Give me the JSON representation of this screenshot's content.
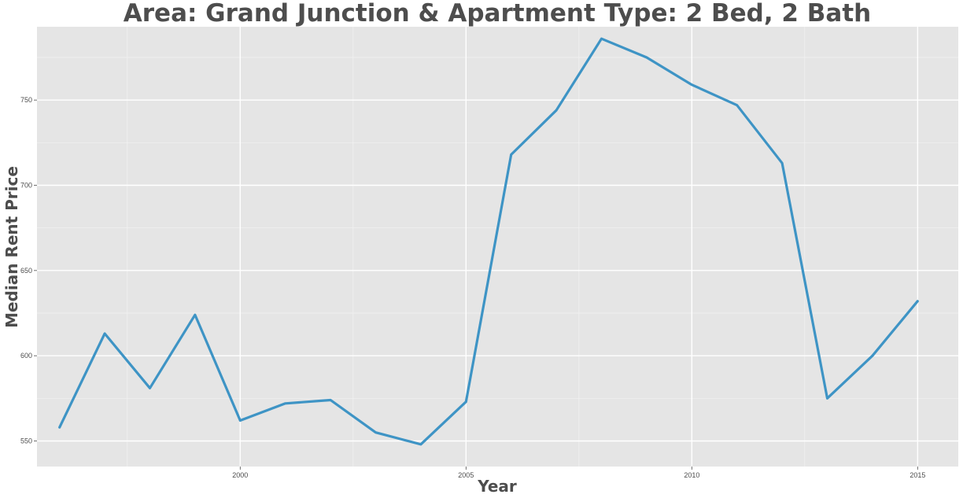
{
  "chart_data": {
    "type": "line",
    "title": "Area: Grand Junction & Apartment Type: 2 Bed, 2 Bath",
    "xlabel": "Year",
    "ylabel": "Median Rent Price",
    "xlim": [
      1995.5,
      2015.9
    ],
    "ylim": [
      535,
      793
    ],
    "x_ticks": [
      2000,
      2005,
      2010,
      2015
    ],
    "y_ticks": [
      550,
      600,
      650,
      700,
      750
    ],
    "x_tick_labels": [
      "2000",
      "2005",
      "2010",
      "2015"
    ],
    "y_tick_labels": [
      "550",
      "600",
      "650",
      "700",
      "750"
    ],
    "grid": true,
    "legend": "none",
    "colors": {
      "line": "#3e94c5",
      "panel": "#e5e5e5",
      "grid": "#ffffff"
    },
    "series": [
      {
        "x": [
          1996,
          1997,
          1998,
          1999,
          2000,
          2001,
          2002,
          2003,
          2004,
          2005,
          2006,
          2007,
          2008,
          2009,
          2010,
          2011,
          2012,
          2013,
          2014,
          2015
        ],
        "values": [
          558,
          613,
          581,
          624,
          562,
          572,
          574,
          555,
          548,
          573,
          718,
          744,
          786,
          775,
          759,
          747,
          713,
          575,
          600,
          632
        ]
      }
    ]
  }
}
